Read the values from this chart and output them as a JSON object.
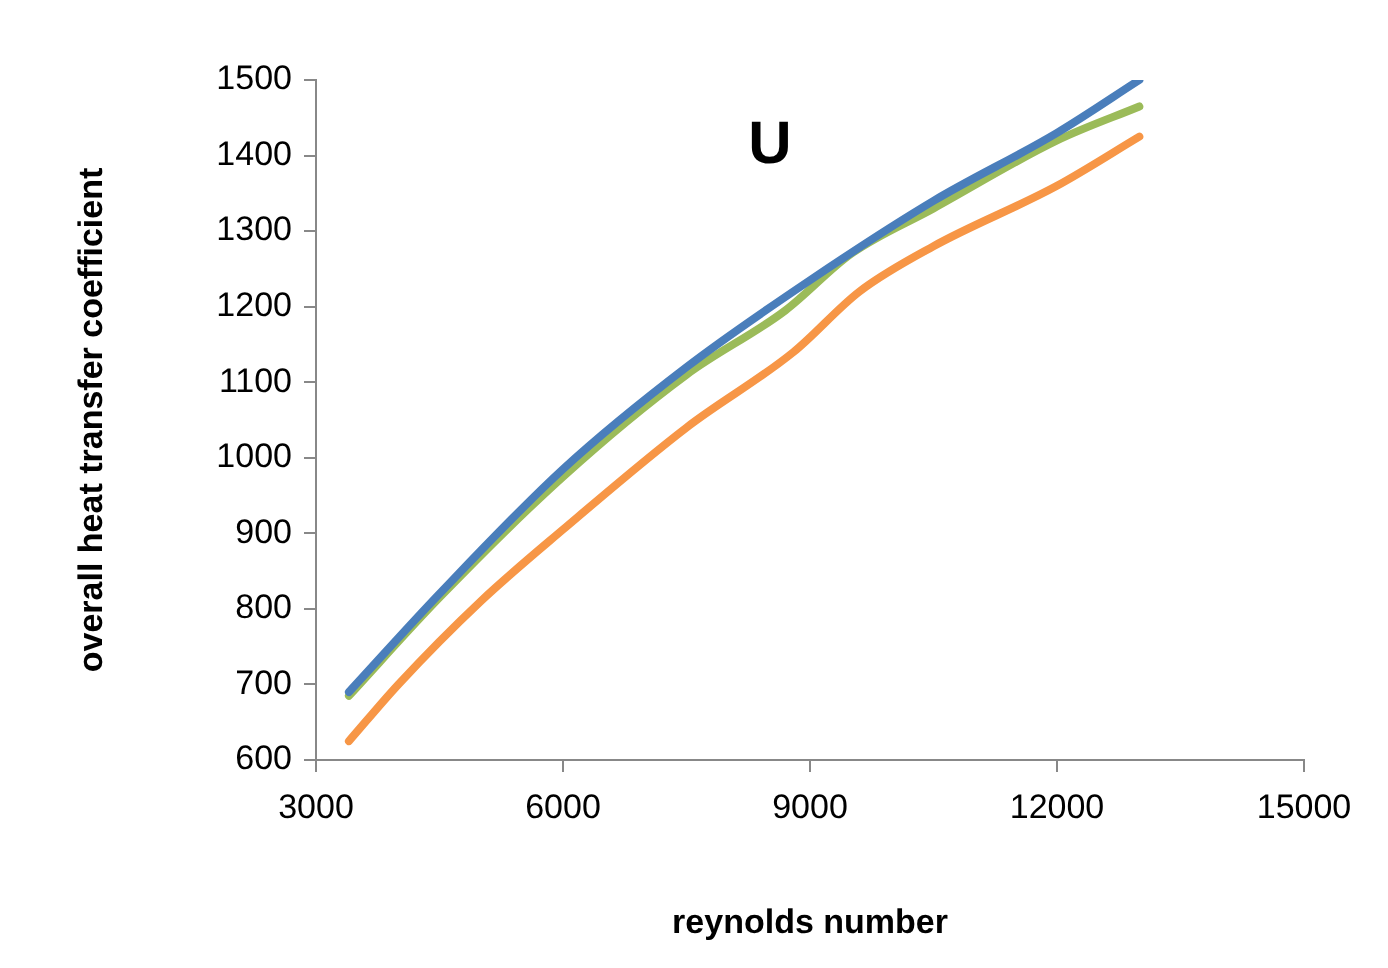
{
  "chart_data": {
    "type": "line",
    "title": "U",
    "xlabel": "reynolds number",
    "ylabel": "overall heat transfer coefficient",
    "xlim": [
      3000,
      15000
    ],
    "xticks": [
      3000,
      6000,
      9000,
      12000,
      15000
    ],
    "ylim": [
      600,
      1500
    ],
    "yticks": [
      600,
      700,
      800,
      900,
      1000,
      1100,
      1200,
      1300,
      1400,
      1500
    ],
    "grid": false,
    "legend": false,
    "marker": "none",
    "line_style": "solid",
    "series": [
      {
        "color": "#4a7ebb",
        "x": [
          3400,
          4500,
          6000,
          7500,
          9000,
          10500,
          12000,
          13000
        ],
        "values": [
          690,
          820,
          985,
          1120,
          1235,
          1340,
          1430,
          1500
        ]
      },
      {
        "color": "#f79646",
        "x": [
          3400,
          4000,
          5000,
          6000,
          7500,
          8800,
          9600,
          10500,
          12000,
          13000
        ],
        "values": [
          625,
          700,
          810,
          905,
          1040,
          1140,
          1220,
          1280,
          1360,
          1425
        ]
      },
      {
        "color": "#9bbb59",
        "x": [
          3400,
          4500,
          6000,
          7500,
          8700,
          9500,
          10500,
          12000,
          13000
        ],
        "values": [
          685,
          815,
          975,
          1110,
          1195,
          1270,
          1330,
          1420,
          1465
        ]
      }
    ]
  }
}
